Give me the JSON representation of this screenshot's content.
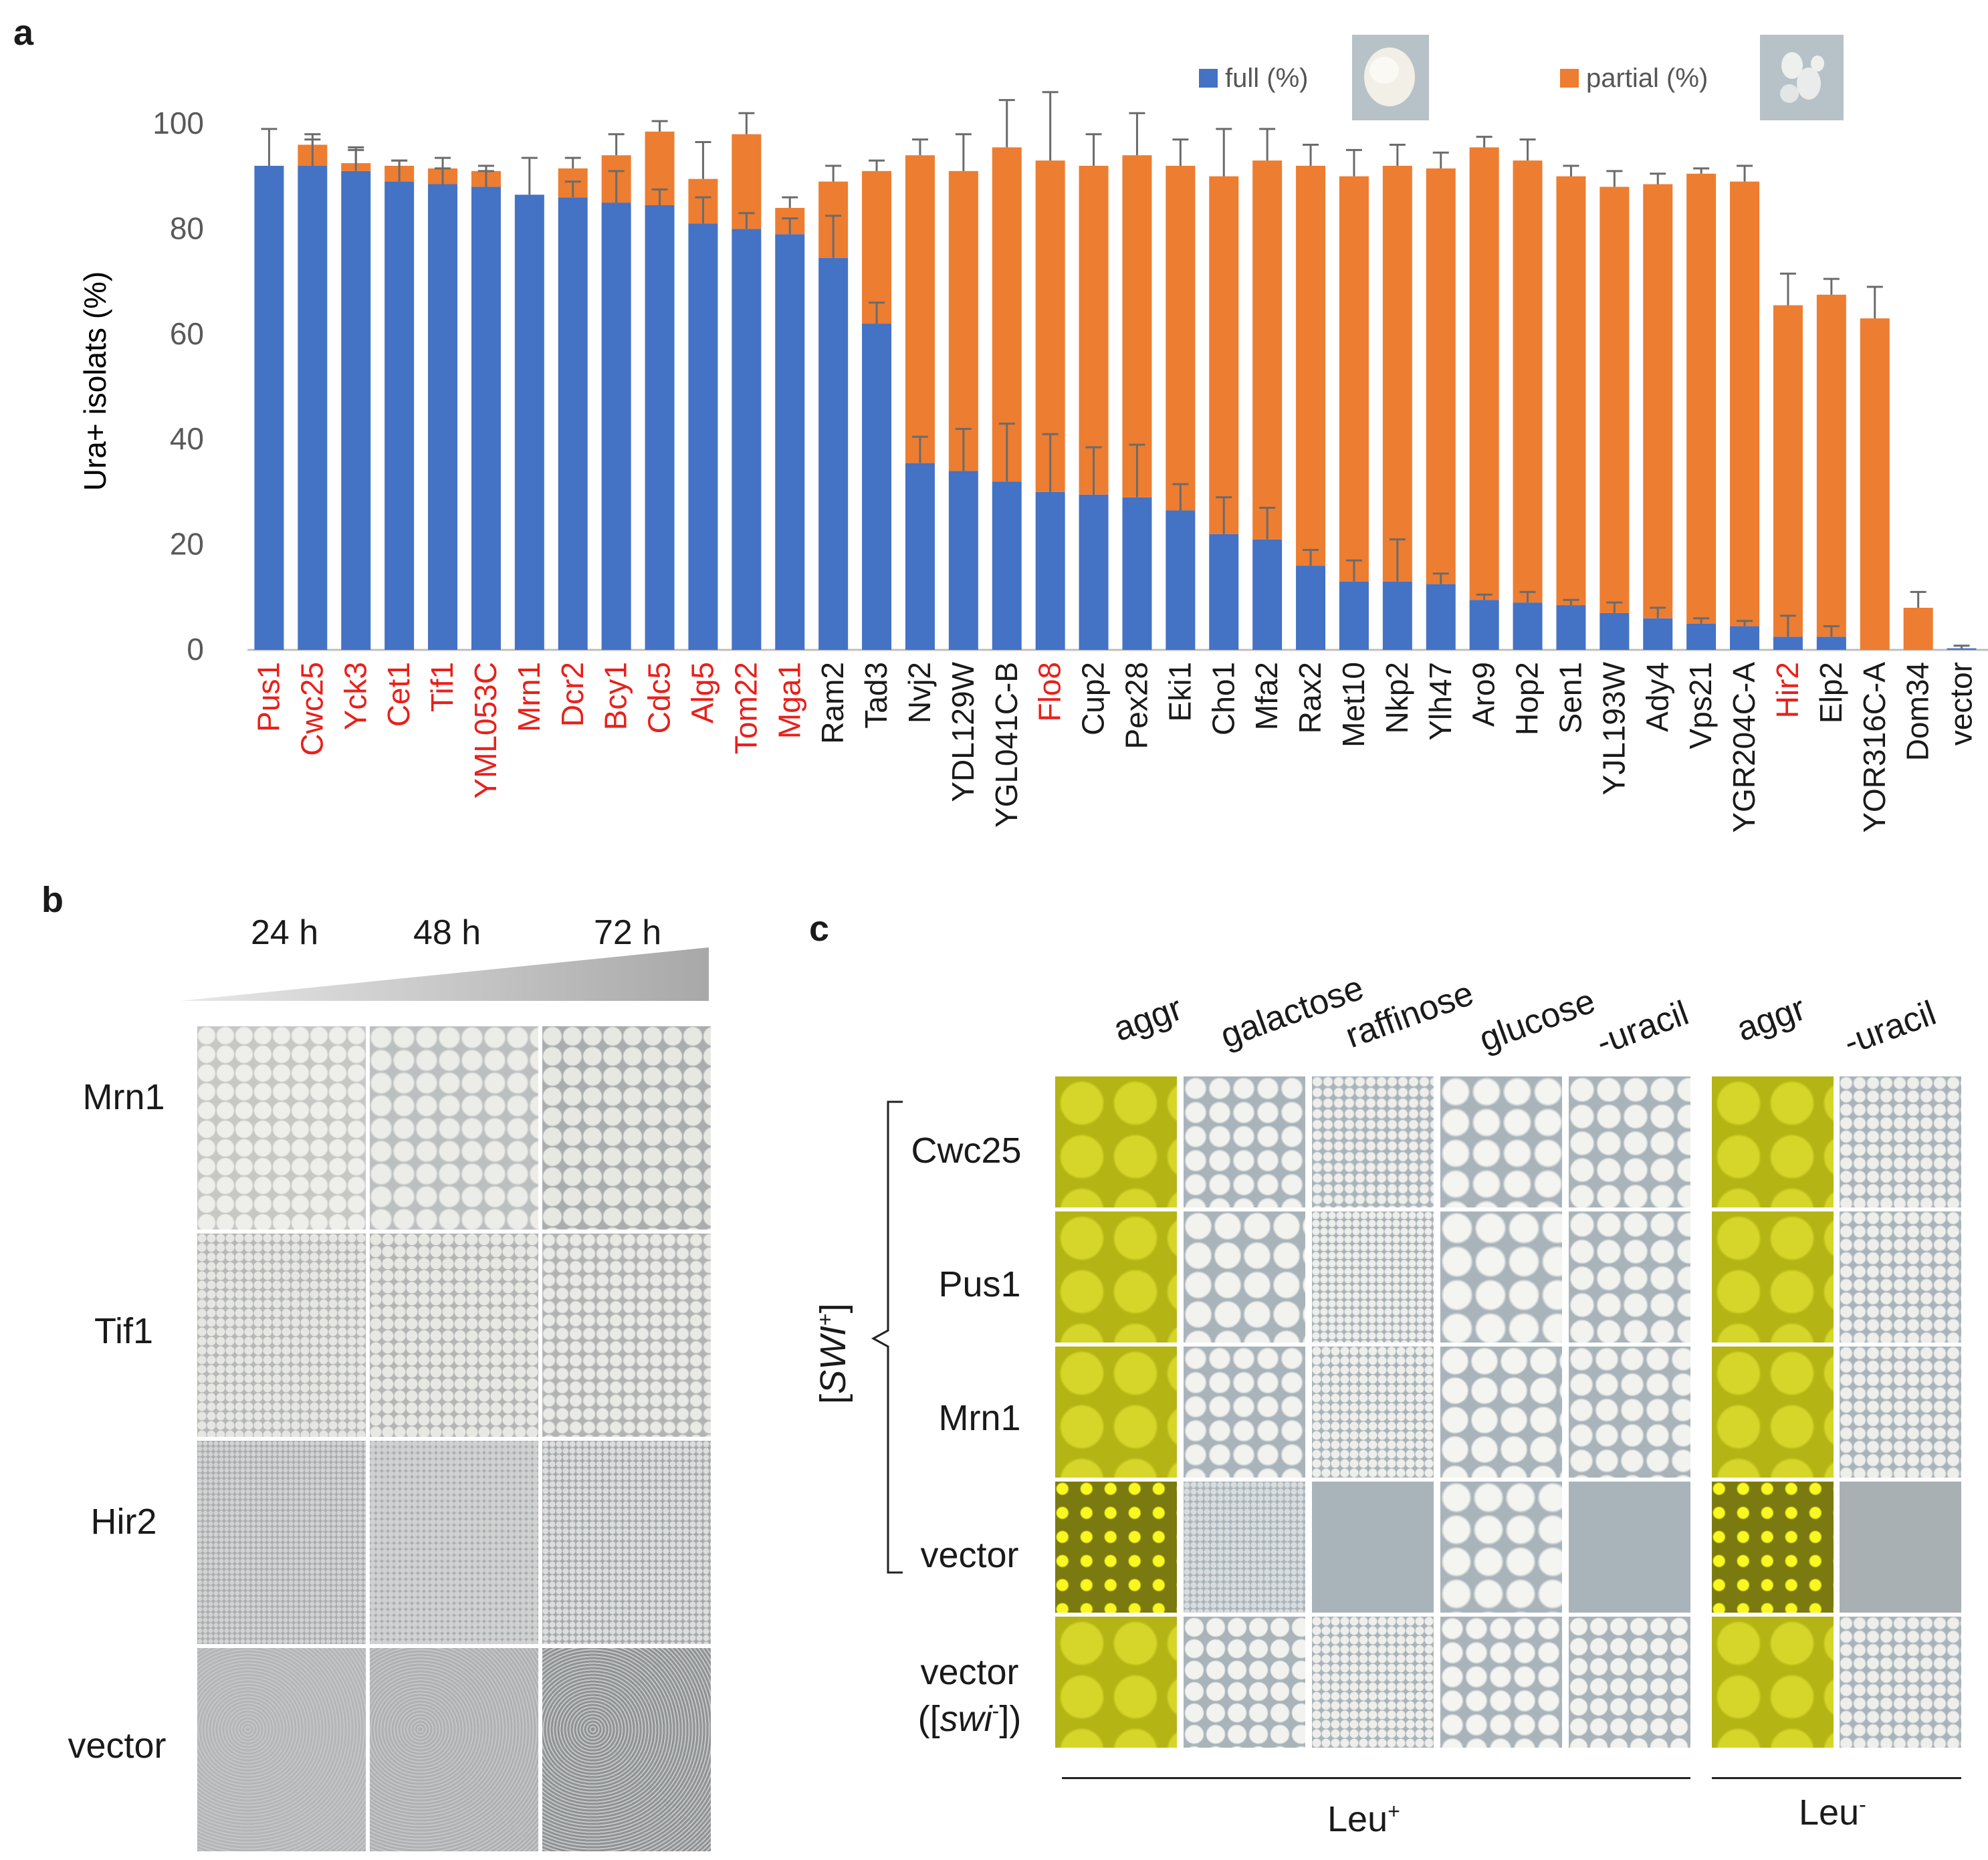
{
  "figure": {
    "panel_a_label": "a",
    "panel_b_label": "b",
    "panel_c_label": "c"
  },
  "chart_data": {
    "type": "bar",
    "stacked": true,
    "ylabel": "Ura+ isolats (%)",
    "xlabel": "",
    "ylim": [
      0,
      100
    ],
    "yticks": [
      0,
      20,
      40,
      60,
      80,
      100
    ],
    "legend_position": "top-right",
    "categories": [
      "Pus1",
      "Cwc25",
      "Yck3",
      "Cet1",
      "Tif1",
      "YML053C",
      "Mrn1",
      "Dcr2",
      "Bcy1",
      "Cdc5",
      "Alg5",
      "Tom22",
      "Mga1",
      "Ram2",
      "Tad3",
      "Nvj2",
      "YDL129W",
      "YGL041C-B",
      "Flo8",
      "Cup2",
      "Pex28",
      "Eki1",
      "Cho1",
      "Mfa2",
      "Rax2",
      "Met10",
      "Nkp2",
      "Ylh47",
      "Aro9",
      "Hop2",
      "Sen1",
      "YJL193W",
      "Ady4",
      "Vps21",
      "YGR204C-A",
      "Hir2",
      "Elp2",
      "YOR316C-A",
      "Dom34",
      "vector"
    ],
    "highlighted_red": [
      "Pus1",
      "Cwc25",
      "Yck3",
      "Cet1",
      "Tif1",
      "YML053C",
      "Mrn1",
      "Dcr2",
      "Bcy1",
      "Cdc5",
      "Alg5",
      "Tom22",
      "Mga1",
      "Flo8",
      "Hir2"
    ],
    "series": [
      {
        "name": "full (%)",
        "color": "#4472c4",
        "values": [
          92,
          92,
          91,
          89,
          88.5,
          88,
          86.5,
          86,
          85,
          84.5,
          81,
          80,
          79,
          74.5,
          62,
          35.5,
          34,
          32,
          30,
          29.5,
          29,
          26.5,
          22,
          21,
          16,
          13,
          13,
          12.5,
          9.5,
          9,
          8.5,
          7,
          6,
          5,
          4.5,
          2.5,
          2.5,
          0,
          0,
          0.3
        ],
        "errors": [
          7,
          5,
          4,
          4,
          3,
          3,
          7,
          3,
          6,
          3,
          5,
          3,
          3,
          8,
          4,
          5,
          8,
          11,
          11,
          9,
          10,
          5,
          7,
          6,
          3,
          4,
          8,
          2,
          1,
          2,
          1,
          2,
          2,
          1,
          1,
          4,
          2,
          0,
          0,
          0
        ]
      },
      {
        "name": "partial (%)",
        "color": "#ed7d31",
        "values": [
          0,
          4,
          1.5,
          3,
          3,
          3,
          0,
          5.5,
          9,
          14,
          8.5,
          18,
          5,
          14.5,
          29,
          58.5,
          57,
          63.5,
          63,
          62.5,
          65,
          65.5,
          68,
          72,
          76,
          77,
          79,
          79,
          86,
          84,
          81.5,
          81,
          82.5,
          85.5,
          84.5,
          63,
          65,
          63,
          8,
          0
        ],
        "errors": [
          0,
          2,
          3,
          1,
          2,
          1,
          0,
          2,
          4,
          2,
          7,
          4,
          2,
          3,
          2,
          3,
          7,
          9,
          13,
          6,
          8,
          5,
          9,
          6,
          4,
          5,
          4,
          3,
          2,
          4,
          2,
          3,
          2,
          1,
          3,
          6,
          3,
          6,
          3,
          0.5
        ]
      }
    ]
  },
  "panel_b": {
    "time_headers": [
      "24 h",
      "48 h",
      "72 h"
    ],
    "rows": [
      "Mrn1",
      "Tif1",
      "Hir2",
      "vector"
    ]
  },
  "panel_c": {
    "column_headers": [
      "aggr",
      "galactose",
      "raffinose",
      "glucose",
      "-uracil",
      "aggr",
      "-uracil"
    ],
    "rows": [
      "Cwc25",
      "Pus1",
      "Mrn1",
      "vector",
      "vector"
    ],
    "last_row_sublabel_pre": "([",
    "last_row_sublabel_ital": "swi",
    "last_row_sublabel_sup": "-",
    "last_row_sublabel_post": "])",
    "bracket_label": "SWI",
    "bracket_label_sup": "+",
    "bracket_open": "[",
    "bracket_close": "]",
    "group_leu_plus": "Leu",
    "group_leu_plus_sup": "+",
    "group_leu_minus": "Leu",
    "group_leu_minus_sup": "-"
  },
  "colors": {
    "full": "#4472c4",
    "partial": "#ed7d31",
    "red_label": "#e8201b",
    "aggr_bg": "#b4b414",
    "plate_bg": "#aeb2b6"
  }
}
